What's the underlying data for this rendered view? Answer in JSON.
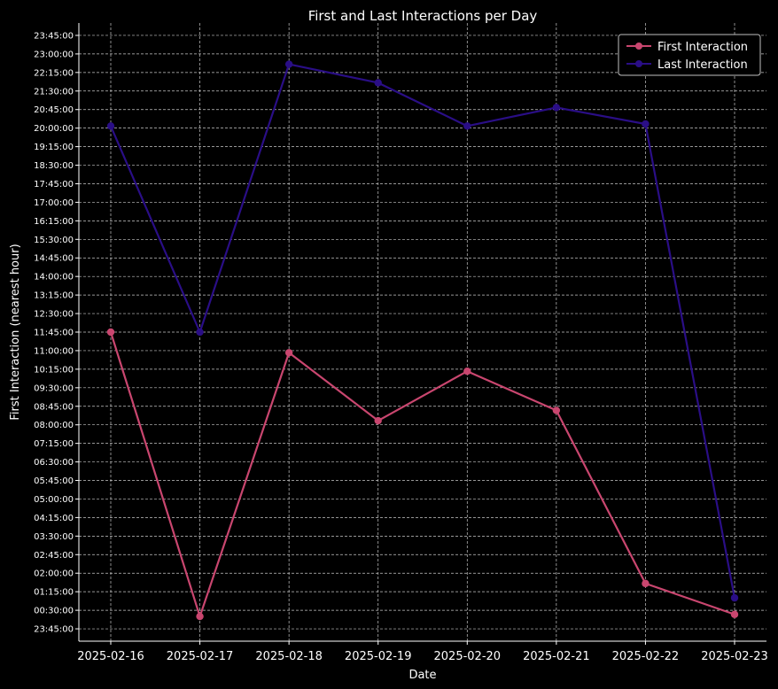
{
  "chart_data": {
    "type": "line",
    "title": "First and Last Interactions per Day",
    "xlabel": "Date",
    "ylabel": "First Interaction (nearest hour)",
    "categories": [
      "2025-02-16",
      "2025-02-17",
      "2025-02-18",
      "2025-02-19",
      "2025-02-20",
      "2025-02-21",
      "2025-02-22",
      "2025-02-23"
    ],
    "y_ticks": [
      "23:45:00",
      "00:30:00",
      "01:15:00",
      "02:00:00",
      "02:45:00",
      "03:30:00",
      "04:15:00",
      "05:00:00",
      "05:45:00",
      "06:30:00",
      "07:15:00",
      "08:00:00",
      "08:45:00",
      "09:30:00",
      "10:15:00",
      "11:00:00",
      "11:45:00",
      "12:30:00",
      "13:15:00",
      "14:00:00",
      "14:45:00",
      "15:30:00",
      "16:15:00",
      "17:00:00",
      "17:45:00",
      "18:30:00",
      "19:15:00",
      "20:00:00",
      "20:45:00",
      "21:30:00",
      "22:15:00",
      "23:00:00",
      "23:45:00"
    ],
    "ylim": [
      "-00:45:00",
      "24:15:00"
    ],
    "grid": true,
    "legend": "top-right",
    "series": [
      {
        "name": "First Interaction",
        "color": "#c9466f",
        "values": [
          "11:45:00",
          "00:15:00",
          "10:55:00",
          "08:10:00",
          "10:10:00",
          "08:35:00",
          "01:35:00",
          "00:20:00"
        ]
      },
      {
        "name": "Last Interaction",
        "color": "#2a0e86",
        "values": [
          "20:05:00",
          "11:45:00",
          "22:35:00",
          "21:50:00",
          "20:05:00",
          "20:50:00",
          "20:10:00",
          "01:00:00"
        ]
      }
    ]
  }
}
